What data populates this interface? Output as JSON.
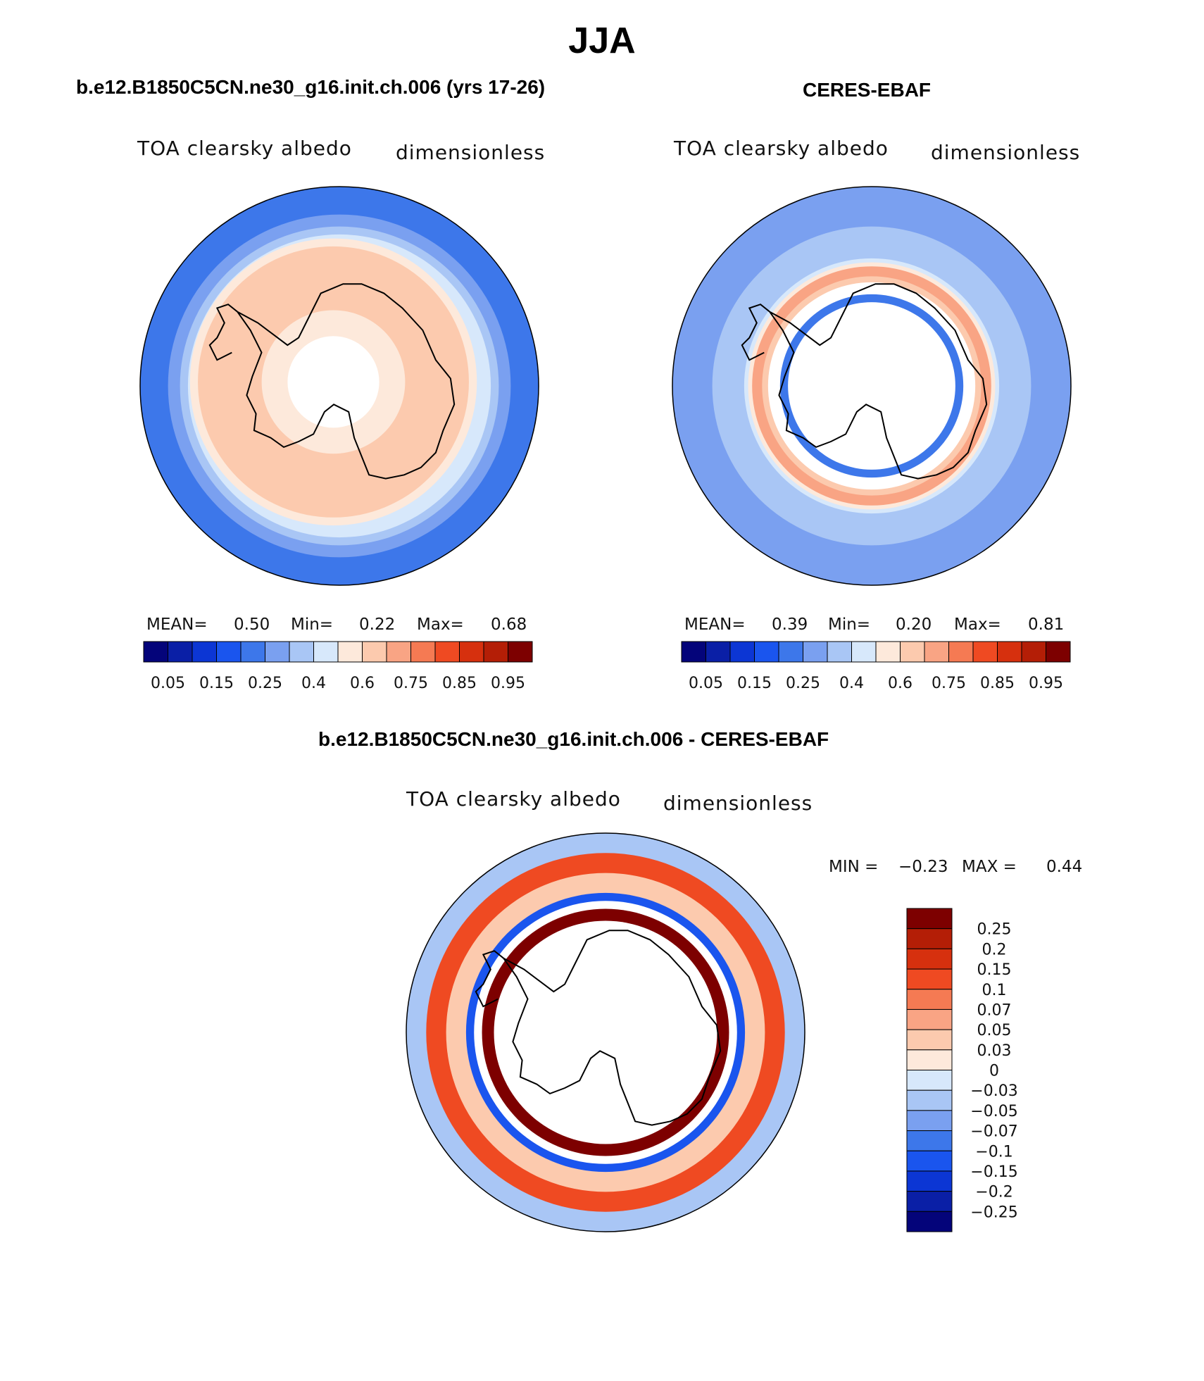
{
  "figure": {
    "season": "JJA",
    "colors": {
      "ocean_blue_deep": "#2f6ad9",
      "land_outline": "#000000",
      "missing": "#ffffff"
    }
  },
  "chart_data": [
    {
      "type": "heatmap",
      "title": "b.e12.B1850C5CN.ne30_g16.init.ch.006 (yrs 17-26)",
      "subtitle_left": "TOA clearsky albedo",
      "subtitle_right": "dimensionless",
      "projection": "south polar stereographic",
      "stats": {
        "mean_label": "MEAN=",
        "mean": "0.50",
        "min_label": "Min=",
        "min": "0.22",
        "max_label": "Max=",
        "max": "0.68"
      },
      "colorbar": {
        "orientation": "horizontal",
        "tick_labels": [
          "0.05",
          "0.15",
          "0.25",
          "0.4",
          "0.6",
          "0.75",
          "0.85",
          "0.95"
        ],
        "colors": [
          "#04047a",
          "#0a1fa6",
          "#0c36d4",
          "#1a55ee",
          "#3d77ea",
          "#7aa0f0",
          "#a9c6f5",
          "#d7e8fb",
          "#fde9db",
          "#fccaae",
          "#f9a484",
          "#f57a53",
          "#ef4a22",
          "#d6300e",
          "#b41e06",
          "#7d0000"
        ]
      },
      "rings": [
        {
          "value_class": "0.25",
          "color": "#3d77ea"
        },
        {
          "value_class": "0.3",
          "color": "#7aa0f0"
        },
        {
          "value_class": "0.35",
          "color": "#a9c6f5"
        },
        {
          "value_class": "0.4",
          "color": "#d7e8fb"
        },
        {
          "value_class": "0.5",
          "color": "#fde9db"
        },
        {
          "value_class": "0.6",
          "color": "#fccaae"
        },
        {
          "value_class": "0.55",
          "color": "#fde9db"
        },
        {
          "value_class": "missing",
          "color": "#ffffff"
        }
      ]
    },
    {
      "type": "heatmap",
      "title": "CERES-EBAF",
      "subtitle_left": "TOA clearsky albedo",
      "subtitle_right": "dimensionless",
      "projection": "south polar stereographic",
      "stats": {
        "mean_label": "MEAN=",
        "mean": "0.39",
        "min_label": "Min=",
        "min": "0.20",
        "max_label": "Max=",
        "max": "0.81"
      },
      "colorbar": {
        "orientation": "horizontal",
        "tick_labels": [
          "0.05",
          "0.15",
          "0.25",
          "0.4",
          "0.6",
          "0.75",
          "0.85",
          "0.95"
        ],
        "colors": [
          "#04047a",
          "#0a1fa6",
          "#0c36d4",
          "#1a55ee",
          "#3d77ea",
          "#7aa0f0",
          "#a9c6f5",
          "#d7e8fb",
          "#fde9db",
          "#fccaae",
          "#f9a484",
          "#f57a53",
          "#ef4a22",
          "#d6300e",
          "#b41e06",
          "#7d0000"
        ]
      },
      "rings": [
        {
          "value_class": "0.25",
          "color": "#7aa0f0"
        },
        {
          "value_class": "0.3",
          "color": "#a9c6f5"
        },
        {
          "value_class": "0.35",
          "color": "#d7e8fb"
        },
        {
          "value_class": "0.5",
          "color": "#fde9db"
        },
        {
          "value_class": "0.65",
          "color": "#f9a484"
        },
        {
          "value_class": "0.55",
          "color": "#fccaae"
        },
        {
          "value_class": "missing",
          "color": "#ffffff"
        },
        {
          "value_class": "0.3",
          "color": "#3d77ea"
        },
        {
          "value_class": "missing",
          "color": "#ffffff"
        }
      ]
    },
    {
      "type": "heatmap",
      "title": "b.e12.B1850C5CN.ne30_g16.init.ch.006 - CERES-EBAF",
      "subtitle_left": "TOA clearsky albedo",
      "subtitle_right": "dimensionless",
      "projection": "south polar stereographic",
      "stats": {
        "min_label": "MIN =",
        "min": "−0.23",
        "max_label": "MAX =",
        "max": "0.44"
      },
      "colorbar": {
        "orientation": "vertical",
        "tick_labels": [
          "0.25",
          "0.2",
          "0.15",
          "0.1",
          "0.07",
          "0.05",
          "0.03",
          "0",
          "−0.03",
          "−0.05",
          "−0.07",
          "−0.1",
          "−0.15",
          "−0.2",
          "−0.25"
        ],
        "colors": [
          "#7d0000",
          "#b41e06",
          "#d6300e",
          "#ef4a22",
          "#f57a53",
          "#f9a484",
          "#fccaae",
          "#fde9db",
          "#d7e8fb",
          "#a9c6f5",
          "#7aa0f0",
          "#3d77ea",
          "#1a55ee",
          "#0c36d4",
          "#0a1fa6",
          "#04047a"
        ]
      },
      "rings": [
        {
          "value_class": "-0.03",
          "color": "#a9c6f5"
        },
        {
          "value_class": "0.15",
          "color": "#ef4a22"
        },
        {
          "value_class": "0.05",
          "color": "#fccaae"
        },
        {
          "value_class": "-0.1",
          "color": "#1a55ee"
        },
        {
          "value_class": "missing",
          "color": "#ffffff"
        },
        {
          "value_class": "0.25",
          "color": "#7d0000"
        },
        {
          "value_class": "missing",
          "color": "#ffffff"
        }
      ]
    }
  ]
}
